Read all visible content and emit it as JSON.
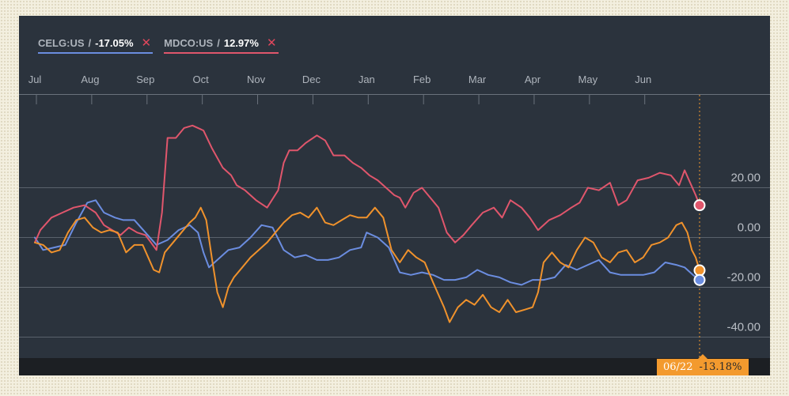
{
  "legend": [
    {
      "ticker": "CELG:US",
      "change": "-17.05%",
      "color": "#6b8de0"
    },
    {
      "ticker": "MDCO:US",
      "change": "12.97%",
      "color": "#e0566c"
    }
  ],
  "marker": {
    "date": "06/22",
    "value": "-13.18%"
  },
  "colors": {
    "celg": "#6b8de0",
    "mdco": "#e0566c",
    "third": "#f0922c",
    "marker": "#f39a2e",
    "grid": "#5a626c",
    "panel": "#2b333d"
  },
  "chart_data": {
    "type": "line",
    "x_tick_labels": [
      "Jul",
      "Aug",
      "Sep",
      "Oct",
      "Nov",
      "Dec",
      "Jan",
      "Feb",
      "Mar",
      "Apr",
      "May",
      "Jun"
    ],
    "y_tick_labels": [
      "20.00",
      "0.00",
      "-20.00",
      "-40.00"
    ],
    "ylim": [
      -45,
      55
    ],
    "xlim": [
      0,
      12.02
    ],
    "grid": true,
    "legend_position": "top-left",
    "series": [
      {
        "name": "CELG:US",
        "color": "#6b8de0",
        "points": [
          [
            0.0,
            0.0
          ],
          [
            0.15,
            -5.0
          ],
          [
            0.35,
            -4.0
          ],
          [
            0.55,
            -3.0
          ],
          [
            0.75,
            6.0
          ],
          [
            0.95,
            14.0
          ],
          [
            1.1,
            15.0
          ],
          [
            1.25,
            10.0
          ],
          [
            1.45,
            8.0
          ],
          [
            1.6,
            7.0
          ],
          [
            1.8,
            7.0
          ],
          [
            2.0,
            2.0
          ],
          [
            2.2,
            -3.0
          ],
          [
            2.4,
            -1.0
          ],
          [
            2.6,
            3.0
          ],
          [
            2.8,
            5.0
          ],
          [
            2.95,
            2.0
          ],
          [
            3.05,
            -6.0
          ],
          [
            3.15,
            -12.0
          ],
          [
            3.3,
            -9.0
          ],
          [
            3.5,
            -5.0
          ],
          [
            3.7,
            -4.0
          ],
          [
            3.9,
            0.0
          ],
          [
            4.1,
            5.0
          ],
          [
            4.3,
            4.0
          ],
          [
            4.5,
            -5.0
          ],
          [
            4.7,
            -8.0
          ],
          [
            4.9,
            -7.0
          ],
          [
            5.1,
            -9.0
          ],
          [
            5.3,
            -9.0
          ],
          [
            5.5,
            -8.0
          ],
          [
            5.7,
            -5.0
          ],
          [
            5.9,
            -4.0
          ],
          [
            6.0,
            2.0
          ],
          [
            6.2,
            0.0
          ],
          [
            6.4,
            -4.0
          ],
          [
            6.6,
            -14.0
          ],
          [
            6.8,
            -15.0
          ],
          [
            7.0,
            -14.0
          ],
          [
            7.2,
            -15.0
          ],
          [
            7.4,
            -17.0
          ],
          [
            7.6,
            -17.0
          ],
          [
            7.8,
            -16.0
          ],
          [
            8.0,
            -13.0
          ],
          [
            8.2,
            -15.0
          ],
          [
            8.4,
            -16.0
          ],
          [
            8.6,
            -18.0
          ],
          [
            8.8,
            -19.0
          ],
          [
            9.0,
            -17.0
          ],
          [
            9.2,
            -17.0
          ],
          [
            9.4,
            -16.0
          ],
          [
            9.6,
            -11.0
          ],
          [
            9.8,
            -13.0
          ],
          [
            10.0,
            -11.0
          ],
          [
            10.2,
            -9.0
          ],
          [
            10.4,
            -14.0
          ],
          [
            10.6,
            -15.0
          ],
          [
            10.8,
            -15.0
          ],
          [
            11.0,
            -15.0
          ],
          [
            11.2,
            -14.0
          ],
          [
            11.4,
            -10.0
          ],
          [
            11.6,
            -11.0
          ],
          [
            11.75,
            -12.0
          ],
          [
            11.9,
            -15.0
          ],
          [
            12.02,
            -17.05
          ]
        ]
      },
      {
        "name": "MDCO:US",
        "color": "#e0566c",
        "points": [
          [
            0.0,
            -2.0
          ],
          [
            0.1,
            3.0
          ],
          [
            0.3,
            8.0
          ],
          [
            0.5,
            10.0
          ],
          [
            0.7,
            12.0
          ],
          [
            0.9,
            13.0
          ],
          [
            1.1,
            10.0
          ],
          [
            1.25,
            5.0
          ],
          [
            1.4,
            3.0
          ],
          [
            1.55,
            1.0
          ],
          [
            1.7,
            4.0
          ],
          [
            1.85,
            2.0
          ],
          [
            2.0,
            1.0
          ],
          [
            2.1,
            -2.0
          ],
          [
            2.2,
            -5.0
          ],
          [
            2.3,
            10.0
          ],
          [
            2.4,
            40.0
          ],
          [
            2.55,
            40.0
          ],
          [
            2.7,
            44.0
          ],
          [
            2.85,
            45.0
          ],
          [
            3.05,
            43.0
          ],
          [
            3.2,
            36.0
          ],
          [
            3.4,
            28.0
          ],
          [
            3.55,
            25.0
          ],
          [
            3.65,
            21.0
          ],
          [
            3.8,
            19.0
          ],
          [
            4.0,
            15.0
          ],
          [
            4.2,
            12.0
          ],
          [
            4.4,
            19.0
          ],
          [
            4.5,
            30.0
          ],
          [
            4.6,
            35.0
          ],
          [
            4.75,
            35.0
          ],
          [
            4.9,
            38.0
          ],
          [
            5.1,
            41.0
          ],
          [
            5.25,
            39.0
          ],
          [
            5.4,
            33.0
          ],
          [
            5.6,
            33.0
          ],
          [
            5.75,
            30.0
          ],
          [
            5.9,
            28.0
          ],
          [
            6.05,
            25.0
          ],
          [
            6.2,
            23.0
          ],
          [
            6.35,
            20.0
          ],
          [
            6.5,
            17.0
          ],
          [
            6.6,
            16.0
          ],
          [
            6.7,
            12.0
          ],
          [
            6.85,
            18.0
          ],
          [
            7.0,
            20.0
          ],
          [
            7.15,
            16.0
          ],
          [
            7.3,
            12.0
          ],
          [
            7.45,
            2.0
          ],
          [
            7.6,
            -2.0
          ],
          [
            7.75,
            1.0
          ],
          [
            7.9,
            5.0
          ],
          [
            8.1,
            10.0
          ],
          [
            8.3,
            12.0
          ],
          [
            8.45,
            8.0
          ],
          [
            8.6,
            15.0
          ],
          [
            8.8,
            12.0
          ],
          [
            8.95,
            8.0
          ],
          [
            9.1,
            3.0
          ],
          [
            9.3,
            7.0
          ],
          [
            9.5,
            9.0
          ],
          [
            9.7,
            12.0
          ],
          [
            9.85,
            14.0
          ],
          [
            10.0,
            20.0
          ],
          [
            10.2,
            19.0
          ],
          [
            10.4,
            22.0
          ],
          [
            10.55,
            13.0
          ],
          [
            10.7,
            15.0
          ],
          [
            10.9,
            23.0
          ],
          [
            11.1,
            24.0
          ],
          [
            11.3,
            26.0
          ],
          [
            11.5,
            25.0
          ],
          [
            11.65,
            21.0
          ],
          [
            11.75,
            27.0
          ],
          [
            11.85,
            22.0
          ],
          [
            11.95,
            17.0
          ],
          [
            12.02,
            12.97
          ]
        ]
      },
      {
        "color": "#f0922c",
        "points": [
          [
            0.0,
            -2.0
          ],
          [
            0.15,
            -3.0
          ],
          [
            0.3,
            -6.0
          ],
          [
            0.45,
            -5.0
          ],
          [
            0.6,
            2.0
          ],
          [
            0.75,
            7.0
          ],
          [
            0.9,
            8.0
          ],
          [
            1.05,
            4.0
          ],
          [
            1.2,
            2.0
          ],
          [
            1.35,
            3.0
          ],
          [
            1.5,
            2.0
          ],
          [
            1.65,
            -6.0
          ],
          [
            1.8,
            -3.0
          ],
          [
            1.95,
            -3.0
          ],
          [
            2.05,
            -8.0
          ],
          [
            2.15,
            -13.0
          ],
          [
            2.25,
            -14.0
          ],
          [
            2.35,
            -6.0
          ],
          [
            2.5,
            -2.0
          ],
          [
            2.65,
            2.0
          ],
          [
            2.8,
            6.0
          ],
          [
            2.9,
            8.0
          ],
          [
            3.0,
            12.0
          ],
          [
            3.1,
            7.0
          ],
          [
            3.2,
            -8.0
          ],
          [
            3.3,
            -22.0
          ],
          [
            3.4,
            -28.0
          ],
          [
            3.5,
            -20.0
          ],
          [
            3.6,
            -16.0
          ],
          [
            3.75,
            -12.0
          ],
          [
            3.9,
            -8.0
          ],
          [
            4.05,
            -5.0
          ],
          [
            4.2,
            -2.0
          ],
          [
            4.35,
            2.0
          ],
          [
            4.5,
            6.0
          ],
          [
            4.65,
            9.0
          ],
          [
            4.8,
            10.0
          ],
          [
            4.95,
            8.0
          ],
          [
            5.1,
            12.0
          ],
          [
            5.25,
            6.0
          ],
          [
            5.4,
            5.0
          ],
          [
            5.55,
            7.0
          ],
          [
            5.7,
            9.0
          ],
          [
            5.85,
            8.0
          ],
          [
            6.0,
            8.0
          ],
          [
            6.15,
            12.0
          ],
          [
            6.3,
            8.0
          ],
          [
            6.45,
            -5.0
          ],
          [
            6.6,
            -10.0
          ],
          [
            6.75,
            -5.0
          ],
          [
            6.9,
            -8.0
          ],
          [
            7.05,
            -10.0
          ],
          [
            7.2,
            -18.0
          ],
          [
            7.3,
            -23.0
          ],
          [
            7.4,
            -28.0
          ],
          [
            7.5,
            -34.0
          ],
          [
            7.65,
            -28.0
          ],
          [
            7.8,
            -25.0
          ],
          [
            7.95,
            -27.0
          ],
          [
            8.1,
            -23.0
          ],
          [
            8.25,
            -28.0
          ],
          [
            8.4,
            -30.0
          ],
          [
            8.55,
            -25.0
          ],
          [
            8.7,
            -30.0
          ],
          [
            8.85,
            -29.0
          ],
          [
            9.0,
            -28.0
          ],
          [
            9.1,
            -22.0
          ],
          [
            9.2,
            -10.0
          ],
          [
            9.35,
            -6.0
          ],
          [
            9.5,
            -10.0
          ],
          [
            9.65,
            -12.0
          ],
          [
            9.8,
            -5.0
          ],
          [
            9.95,
            0.0
          ],
          [
            10.1,
            -2.0
          ],
          [
            10.25,
            -8.0
          ],
          [
            10.4,
            -10.0
          ],
          [
            10.55,
            -6.0
          ],
          [
            10.7,
            -5.0
          ],
          [
            10.85,
            -10.0
          ],
          [
            11.0,
            -8.0
          ],
          [
            11.15,
            -3.0
          ],
          [
            11.3,
            -2.0
          ],
          [
            11.45,
            0.0
          ],
          [
            11.6,
            5.0
          ],
          [
            11.7,
            6.0
          ],
          [
            11.8,
            2.0
          ],
          [
            11.88,
            -5.0
          ],
          [
            11.95,
            -8.0
          ],
          [
            12.02,
            -13.18
          ]
        ]
      }
    ]
  }
}
